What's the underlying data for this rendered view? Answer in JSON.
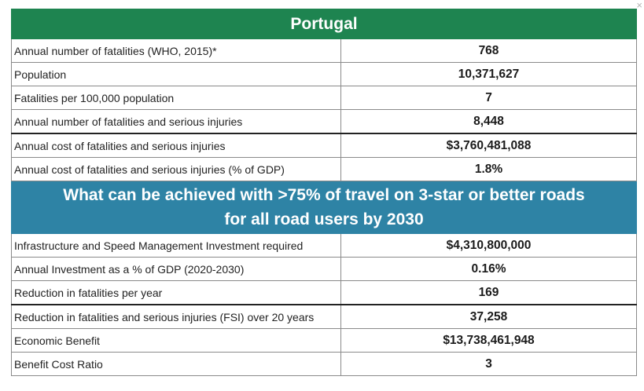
{
  "title": "Portugal",
  "section1_rows": [
    {
      "label": "Annual number of fatalities (WHO, 2015)*",
      "value": "768"
    },
    {
      "label": "Population",
      "value": "10,371,627"
    },
    {
      "label": "Fatalities per 100,000 population",
      "value": "7"
    },
    {
      "label": "Annual number of fatalities and serious injuries",
      "value": "8,448"
    },
    {
      "label": "Annual cost of fatalities and serious injuries",
      "value": "$3,760,481,088"
    },
    {
      "label": "Annual cost of fatalities and serious injuries (% of GDP)",
      "value": "1.8%"
    }
  ],
  "section2_heading": {
    "line1": "What can be achieved with >75% of travel on 3-star or better roads",
    "line2": "for all road users by 2030"
  },
  "section2_rows": [
    {
      "label": "Infrastructure and Speed Management Investment required",
      "value": "$4,310,800,000"
    },
    {
      "label": "Annual Investment as a % of GDP (2020-2030)",
      "value": "0.16%"
    },
    {
      "label": "Reduction in fatalities per year",
      "value": "169"
    },
    {
      "label": "Reduction in fatalities and serious injuries (FSI) over 20 years",
      "value": "37,258"
    },
    {
      "label": "Economic Benefit",
      "value": "$13,738,461,948"
    },
    {
      "label": "Benefit Cost Ratio",
      "value": "3"
    }
  ],
  "close_icon_glyph": "×",
  "colors": {
    "title_bg": "#1e8450",
    "section_bg": "#2e83a5"
  }
}
